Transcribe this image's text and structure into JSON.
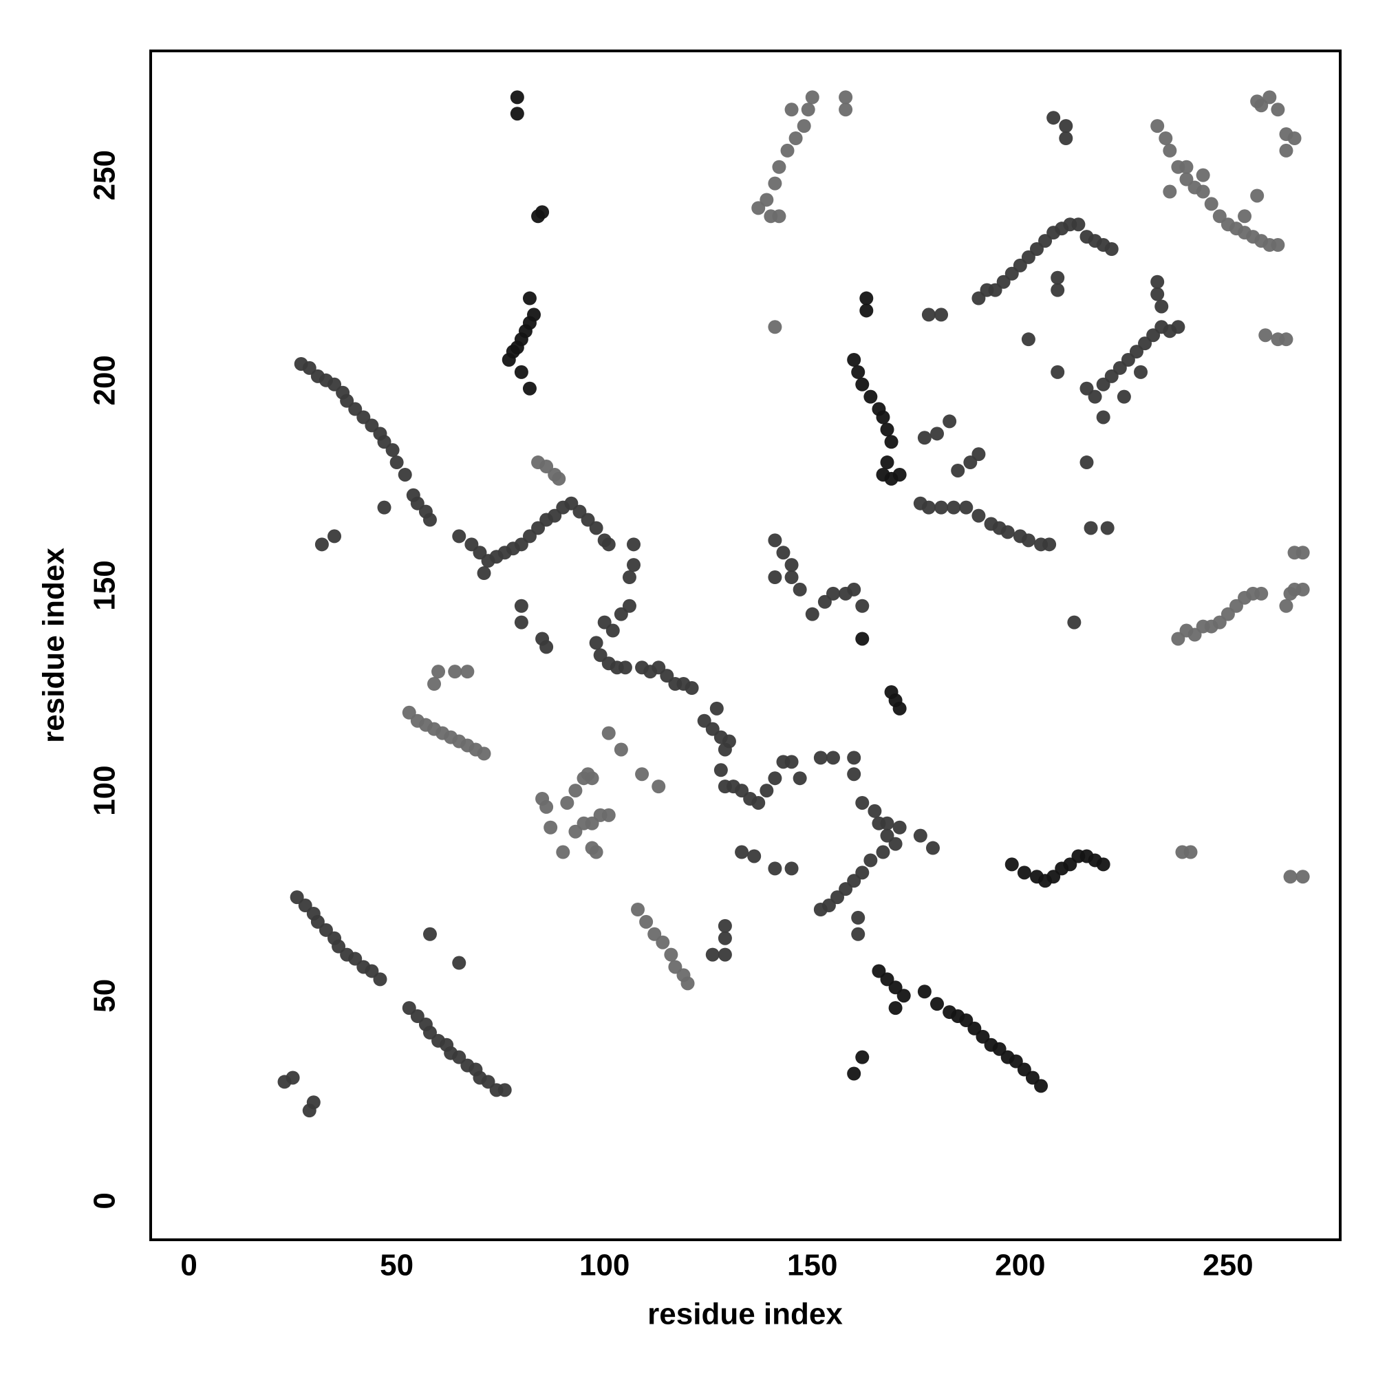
{
  "chart_data": {
    "type": "scatter",
    "xlabel": "residue index",
    "ylabel": "residue index",
    "xlim": [
      -9.2,
      277
    ],
    "ylim": [
      -9.5,
      280.3
    ],
    "xticks": [
      0,
      50,
      100,
      150,
      200,
      250
    ],
    "yticks": [
      0,
      50,
      100,
      150,
      200,
      250
    ],
    "grid": false,
    "series": [
      {
        "color": "#141414",
        "x": [
          77,
          78,
          79,
          80,
          81,
          82,
          83,
          82,
          80,
          82,
          79,
          79,
          84,
          85,
          198,
          201,
          204,
          206,
          208,
          210,
          212,
          214,
          216,
          218,
          220,
          166,
          168,
          170,
          172,
          170,
          177,
          180,
          183,
          185,
          187,
          189,
          191,
          193,
          195,
          197,
          199,
          201,
          203,
          205,
          162,
          160,
          160,
          161,
          162,
          164,
          166,
          167,
          168,
          169,
          168,
          167,
          169,
          171,
          163,
          163,
          162,
          169,
          170,
          171
        ],
        "values": [
          205,
          207,
          208,
          210,
          212,
          214,
          216,
          220,
          202,
          198,
          265,
          269,
          240,
          241,
          82,
          80,
          79,
          78,
          79,
          81,
          82,
          84,
          84,
          83,
          82,
          56,
          54,
          52,
          50,
          47,
          51,
          48,
          46,
          45,
          44,
          42,
          40,
          38,
          37,
          35,
          34,
          32,
          30,
          28,
          35,
          31,
          205,
          202,
          199,
          196,
          193,
          191,
          188,
          185,
          180,
          177,
          176,
          177,
          220,
          217,
          137,
          124,
          122,
          120
        ]
      },
      {
        "color": "#3a3a3a",
        "x": [
          27,
          29,
          31,
          33,
          35,
          37,
          38,
          40,
          42,
          44,
          46,
          47,
          49,
          50,
          52,
          54,
          55,
          57,
          58,
          32,
          35,
          47,
          26,
          28,
          30,
          31,
          33,
          35,
          36,
          38,
          40,
          42,
          44,
          46,
          23,
          25,
          29,
          30,
          58,
          65,
          53,
          55,
          57,
          58,
          60,
          62,
          63,
          65,
          67,
          69,
          70,
          72,
          74,
          76,
          68,
          70,
          72,
          74,
          76,
          78,
          80,
          82,
          84,
          86,
          88,
          90,
          92,
          94,
          96,
          98,
          100,
          65,
          71,
          100,
          98,
          99,
          101,
          103,
          105,
          102,
          104,
          106,
          106,
          107,
          101,
          107,
          80,
          80,
          85,
          86,
          109,
          111,
          113,
          115,
          117,
          119,
          121,
          124,
          126,
          128,
          130,
          129,
          128,
          127,
          129,
          131,
          133,
          135,
          137,
          139,
          141,
          143,
          145,
          147,
          129,
          129,
          126,
          129,
          133,
          136,
          141,
          145,
          152,
          155,
          160,
          160,
          162,
          165,
          166,
          168,
          170,
          167,
          164,
          162,
          160,
          158,
          156,
          154,
          152,
          161,
          161,
          168,
          171,
          176,
          179,
          176,
          178,
          181,
          184,
          187,
          190,
          193,
          195,
          197,
          200,
          202,
          205,
          207,
          177,
          180,
          183,
          185,
          188,
          190,
          178,
          181,
          162,
          160,
          158,
          155,
          153,
          150,
          147,
          145,
          143,
          141,
          141,
          145,
          213,
          190,
          192,
          194,
          196,
          198,
          200,
          202,
          204,
          206,
          208,
          210,
          212,
          214,
          216,
          218,
          220,
          222,
          209,
          209,
          202,
          209,
          208,
          211,
          211,
          218,
          220,
          222,
          224,
          226,
          228,
          230,
          232,
          234,
          236,
          238,
          233,
          233,
          234,
          220,
          216,
          217,
          221,
          216,
          225,
          229
        ],
        "values": [
          204,
          203,
          201,
          200,
          199,
          197,
          195,
          193,
          191,
          189,
          187,
          185,
          183,
          180,
          177,
          172,
          170,
          168,
          166,
          160,
          162,
          169,
          74,
          72,
          70,
          68,
          66,
          64,
          62,
          60,
          59,
          57,
          56,
          54,
          29,
          30,
          22,
          24,
          65,
          58,
          47,
          45,
          43,
          41,
          39,
          38,
          36,
          35,
          33,
          32,
          30,
          29,
          27,
          27,
          160,
          158,
          156,
          157,
          158,
          159,
          160,
          162,
          164,
          166,
          167,
          169,
          170,
          168,
          166,
          164,
          161,
          162,
          153,
          141,
          136,
          133,
          131,
          130,
          130,
          139,
          143,
          145,
          152,
          155,
          160,
          160,
          141,
          145,
          137,
          135,
          130,
          129,
          130,
          128,
          126,
          126,
          125,
          117,
          115,
          113,
          112,
          110,
          105,
          120,
          101,
          101,
          100,
          98,
          97,
          100,
          103,
          107,
          107,
          103,
          67,
          64,
          60,
          60,
          85,
          84,
          81,
          81,
          108,
          108,
          108,
          104,
          97,
          95,
          92,
          89,
          87,
          85,
          83,
          80,
          78,
          76,
          74,
          72,
          71,
          69,
          65,
          92,
          91,
          89,
          86,
          170,
          169,
          169,
          169,
          169,
          167,
          165,
          164,
          163,
          162,
          161,
          160,
          160,
          186,
          187,
          190,
          178,
          180,
          182,
          216,
          216,
          145,
          149,
          148,
          148,
          146,
          143,
          149,
          155,
          158,
          161,
          152,
          152,
          141,
          220,
          222,
          222,
          224,
          226,
          228,
          230,
          232,
          234,
          236,
          237,
          238,
          238,
          235,
          234,
          233,
          232,
          225,
          222,
          210,
          202,
          264,
          262,
          259,
          196,
          199,
          201,
          203,
          205,
          207,
          209,
          211,
          213,
          212,
          213,
          221,
          224,
          218,
          191,
          180,
          164,
          164,
          198,
          196,
          202
        ]
      },
      {
        "color": "#6b6b6b",
        "x": [
          53,
          55,
          57,
          59,
          61,
          63,
          65,
          67,
          69,
          71,
          59,
          60,
          64,
          67,
          84,
          86,
          88,
          89,
          85,
          86,
          87,
          90,
          91,
          93,
          95,
          97,
          93,
          95,
          97,
          99,
          101,
          97,
          98,
          96,
          101,
          104,
          109,
          108,
          110,
          112,
          114,
          116,
          117,
          119,
          120,
          113,
          137,
          139,
          141,
          142,
          144,
          146,
          148,
          149,
          150,
          140,
          142,
          145,
          158,
          158,
          141,
          233,
          235,
          236,
          238,
          240,
          242,
          244,
          246,
          248,
          250,
          252,
          254,
          256,
          258,
          260,
          262,
          236,
          240,
          244,
          254,
          257,
          257,
          258,
          260,
          262,
          264,
          266,
          264,
          238,
          240,
          242,
          244,
          246,
          248,
          250,
          252,
          254,
          256,
          258,
          262,
          264,
          265,
          266,
          268,
          266,
          268,
          264,
          239,
          241,
          265,
          268,
          259
        ],
        "values": [
          119,
          117,
          116,
          115,
          114,
          113,
          112,
          111,
          110,
          109,
          126,
          129,
          129,
          129,
          180,
          179,
          177,
          176,
          98,
          96,
          91,
          85,
          97,
          100,
          103,
          103,
          90,
          92,
          92,
          94,
          94,
          86,
          85,
          104,
          114,
          110,
          104,
          71,
          68,
          65,
          63,
          60,
          57,
          55,
          53,
          101,
          242,
          244,
          248,
          252,
          256,
          259,
          262,
          266,
          269,
          240,
          240,
          266,
          266,
          269,
          213,
          262,
          259,
          256,
          252,
          249,
          247,
          246,
          243,
          240,
          238,
          237,
          236,
          235,
          234,
          233,
          233,
          246,
          252,
          250,
          240,
          245,
          268,
          267,
          269,
          266,
          260,
          259,
          256,
          137,
          139,
          138,
          140,
          140,
          141,
          143,
          145,
          147,
          148,
          148,
          210,
          210,
          148,
          149,
          149,
          158,
          158,
          145,
          85,
          85,
          79,
          79,
          211
        ]
      }
    ]
  }
}
